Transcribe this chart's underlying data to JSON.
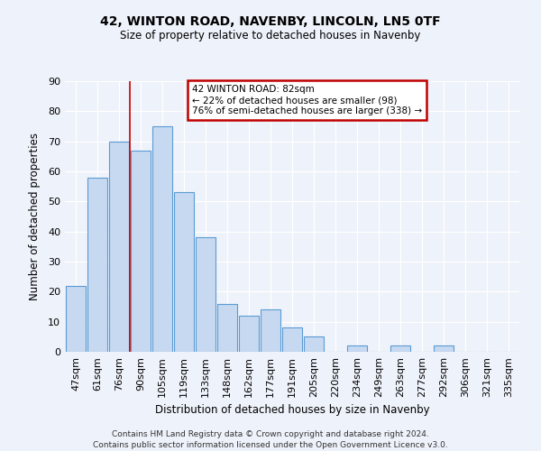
{
  "title": "42, WINTON ROAD, NAVENBY, LINCOLN, LN5 0TF",
  "subtitle": "Size of property relative to detached houses in Navenby",
  "xlabel": "Distribution of detached houses by size in Navenby",
  "ylabel": "Number of detached properties",
  "bar_labels": [
    "47sqm",
    "61sqm",
    "76sqm",
    "90sqm",
    "105sqm",
    "119sqm",
    "133sqm",
    "148sqm",
    "162sqm",
    "177sqm",
    "191sqm",
    "205sqm",
    "220sqm",
    "234sqm",
    "249sqm",
    "263sqm",
    "277sqm",
    "292sqm",
    "306sqm",
    "321sqm",
    "335sqm"
  ],
  "bar_values": [
    22,
    58,
    70,
    67,
    75,
    53,
    38,
    16,
    12,
    14,
    8,
    5,
    0,
    2,
    0,
    2,
    0,
    2,
    0,
    0,
    0
  ],
  "bar_color": "#c6d9f0",
  "bar_edge_color": "#5b9bd5",
  "ylim": [
    0,
    90
  ],
  "annotation_title": "42 WINTON ROAD: 82sqm",
  "annotation_line1": "← 22% of detached houses are smaller (98)",
  "annotation_line2": "76% of semi-detached houses are larger (338) →",
  "annotation_box_color": "#ffffff",
  "annotation_box_edge": "#c00000",
  "background_color": "#eef2fa",
  "footer1": "Contains HM Land Registry data © Crown copyright and database right 2024.",
  "footer2": "Contains public sector information licensed under the Open Government Licence v3.0."
}
